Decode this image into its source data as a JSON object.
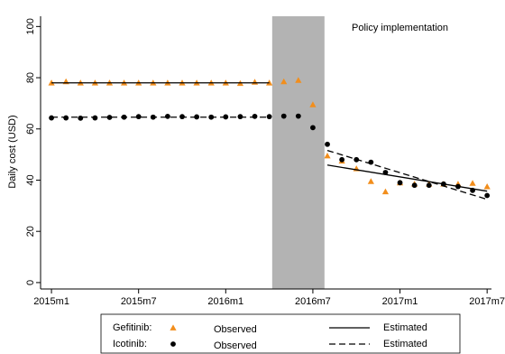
{
  "chart_data": {
    "type": "scatter",
    "ylabel": "Daily cost (USD)",
    "annotation": "Policy implementation",
    "xlim": [
      -0.75,
      30.3
    ],
    "ylim": [
      -2.5,
      104
    ],
    "xticks": [
      {
        "value": 0,
        "label": "2015m1"
      },
      {
        "value": 6,
        "label": "2015m7"
      },
      {
        "value": 12,
        "label": "2016m1"
      },
      {
        "value": 18,
        "label": "2016m7"
      },
      {
        "value": 24,
        "label": "2017m1"
      },
      {
        "value": 30,
        "label": "2017m7"
      }
    ],
    "yticks": [
      0,
      20,
      40,
      60,
      80,
      100
    ],
    "shaded_range": [
      15.2,
      18.8
    ],
    "shade_color": "#b3b3b3",
    "series": [
      {
        "label": "Gefitinib:",
        "name": "Observed",
        "marker": "triangle",
        "color": "#f28e1c",
        "x": [
          0,
          1,
          2,
          3,
          4,
          5,
          6,
          7,
          8,
          9,
          10,
          11,
          12,
          13,
          14,
          15,
          16,
          17,
          18,
          19,
          20,
          21,
          22,
          23,
          24,
          25,
          26,
          27,
          28,
          29,
          30
        ],
        "values": [
          78,
          78.5,
          78,
          78,
          78,
          78,
          78,
          78,
          78,
          78,
          78,
          78,
          78,
          77.8,
          78.3,
          78,
          78.5,
          79,
          69.5,
          49.5,
          47.5,
          44.5,
          39.5,
          35.5,
          39,
          38.5,
          38.5,
          38.5,
          38.5,
          38.8,
          37.5
        ]
      },
      {
        "label": "Icotinib:",
        "name": "Observed",
        "marker": "circle",
        "color": "#000000",
        "x": [
          0,
          1,
          2,
          3,
          4,
          5,
          6,
          7,
          8,
          9,
          10,
          11,
          12,
          13,
          14,
          15,
          16,
          17,
          18,
          19,
          20,
          21,
          22,
          23,
          24,
          25,
          26,
          27,
          28,
          29,
          30
        ],
        "values": [
          64.3,
          64.3,
          64.2,
          64.3,
          64.5,
          64.6,
          64.8,
          64.6,
          64.9,
          64.8,
          64.7,
          64.6,
          64.7,
          64.8,
          64.9,
          64.8,
          65,
          65,
          60.5,
          54,
          48,
          48,
          47,
          43,
          39,
          38,
          38,
          38.5,
          37.5,
          36,
          34
        ]
      },
      {
        "name": "Estimated",
        "marker": "line",
        "dash": "solid",
        "color": "#000000",
        "x": [
          0,
          15,
          17,
          19,
          30
        ],
        "values": [
          78,
          78,
          null,
          45.9,
          35.7
        ]
      },
      {
        "name": "Estimated",
        "marker": "line",
        "dash": "dashed",
        "color": "#000000",
        "x": [
          0,
          15,
          17,
          19,
          30
        ],
        "values": [
          64.6,
          64.6,
          null,
          51.6,
          32.5
        ]
      }
    ]
  }
}
